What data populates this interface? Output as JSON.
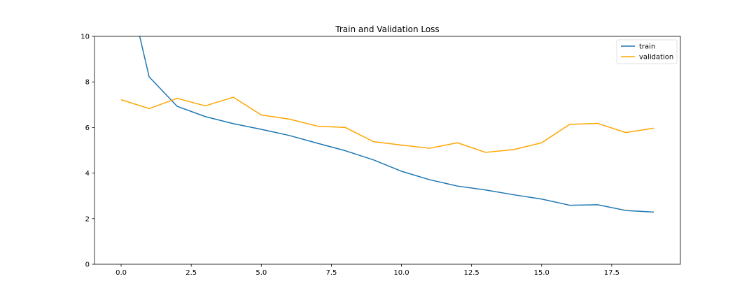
{
  "chart_data": {
    "type": "line",
    "title": "Train and Validation Loss",
    "xlabel": "",
    "ylabel": "",
    "xlim": [
      -0.95,
      19.95
    ],
    "ylim": [
      0,
      10
    ],
    "grid": false,
    "legend_position": "top-right",
    "x": [
      0,
      1,
      2,
      3,
      4,
      5,
      6,
      7,
      8,
      9,
      10,
      11,
      12,
      13,
      14,
      15,
      16,
      17,
      18,
      19
    ],
    "series": [
      {
        "name": "train",
        "color": "#1f77b4",
        "values": [
          13.5,
          8.22,
          6.93,
          6.48,
          6.17,
          5.92,
          5.65,
          5.31,
          4.98,
          4.58,
          4.08,
          3.71,
          3.43,
          3.26,
          3.05,
          2.86,
          2.59,
          2.61,
          2.36,
          2.29
        ]
      },
      {
        "name": "validation",
        "color": "#ffa500",
        "values": [
          7.22,
          6.83,
          7.28,
          6.95,
          7.33,
          6.55,
          6.37,
          6.06,
          6.0,
          5.38,
          5.23,
          5.09,
          5.33,
          4.91,
          5.03,
          5.33,
          6.14,
          6.18,
          5.78,
          5.97
        ]
      }
    ],
    "xticks": [
      0.0,
      2.5,
      5.0,
      7.5,
      10.0,
      12.5,
      15.0,
      17.5
    ],
    "xtick_labels": [
      "0.0",
      "2.5",
      "5.0",
      "7.5",
      "10.0",
      "12.5",
      "15.0",
      "17.5"
    ],
    "yticks": [
      0,
      2,
      4,
      6,
      8,
      10
    ],
    "ytick_labels": [
      "0",
      "2",
      "4",
      "6",
      "8",
      "10"
    ]
  }
}
